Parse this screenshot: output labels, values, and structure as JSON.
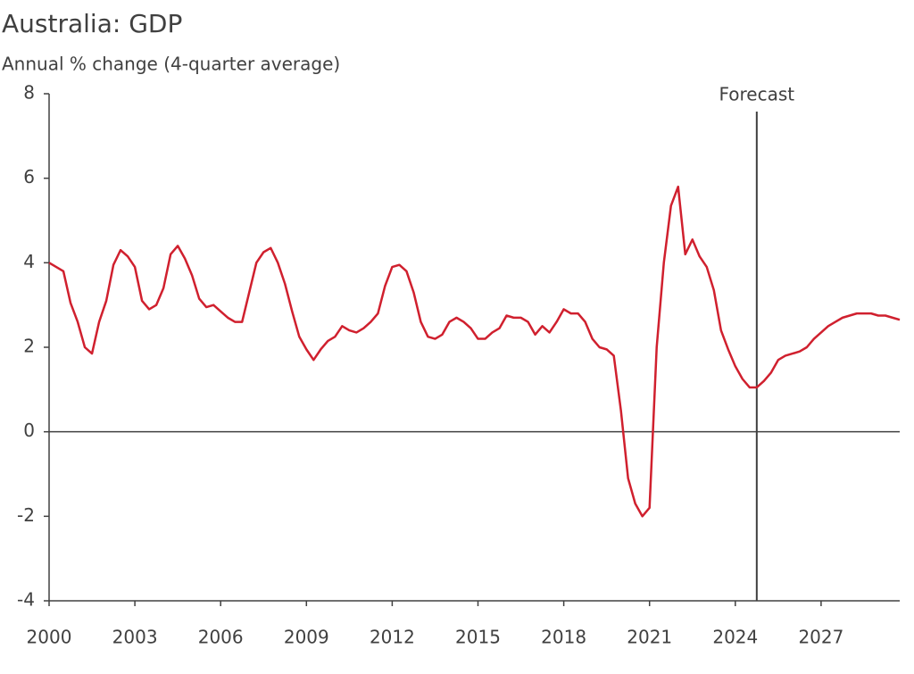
{
  "chart_data": {
    "type": "line",
    "title": "Australia: GDP",
    "subtitle": "Annual % change (4-quarter average)",
    "x": [
      2000,
      2000.25,
      2000.5,
      2000.75,
      2001,
      2001.25,
      2001.5,
      2001.75,
      2002,
      2002.25,
      2002.5,
      2002.75,
      2003,
      2003.25,
      2003.5,
      2003.75,
      2004,
      2004.25,
      2004.5,
      2004.75,
      2005,
      2005.25,
      2005.5,
      2005.75,
      2006,
      2006.25,
      2006.5,
      2006.75,
      2007,
      2007.25,
      2007.5,
      2007.75,
      2008,
      2008.25,
      2008.5,
      2008.75,
      2009,
      2009.25,
      2009.5,
      2009.75,
      2010,
      2010.25,
      2010.5,
      2010.75,
      2011,
      2011.25,
      2011.5,
      2011.75,
      2012,
      2012.25,
      2012.5,
      2012.75,
      2013,
      2013.25,
      2013.5,
      2013.75,
      2014,
      2014.25,
      2014.5,
      2014.75,
      2015,
      2015.25,
      2015.5,
      2015.75,
      2016,
      2016.25,
      2016.5,
      2016.75,
      2017,
      2017.25,
      2017.5,
      2017.75,
      2018,
      2018.25,
      2018.5,
      2018.75,
      2019,
      2019.25,
      2019.5,
      2019.75,
      2020,
      2020.25,
      2020.5,
      2020.75,
      2021,
      2021.25,
      2021.5,
      2021.75,
      2022,
      2022.25,
      2022.5,
      2022.75,
      2023,
      2023.25,
      2023.5,
      2023.75,
      2024,
      2024.25,
      2024.5,
      2024.75,
      2025,
      2025.25,
      2025.5,
      2025.75,
      2026,
      2026.25,
      2026.5,
      2026.75,
      2027,
      2027.25,
      2027.5,
      2027.75,
      2028,
      2028.25,
      2028.5,
      2028.75,
      2029,
      2029.25,
      2029.5,
      2029.75
    ],
    "values": [
      4.0,
      3.9,
      3.8,
      3.05,
      2.6,
      2.0,
      1.85,
      2.6,
      3.1,
      3.95,
      4.3,
      4.15,
      3.9,
      3.1,
      2.9,
      3.0,
      3.4,
      4.2,
      4.4,
      4.1,
      3.7,
      3.15,
      2.95,
      3.0,
      2.85,
      2.7,
      2.6,
      2.6,
      3.3,
      4.0,
      4.25,
      4.35,
      4.0,
      3.5,
      2.85,
      2.25,
      1.95,
      1.7,
      1.95,
      2.15,
      2.25,
      2.5,
      2.4,
      2.35,
      2.45,
      2.6,
      2.8,
      3.45,
      3.9,
      3.95,
      3.8,
      3.3,
      2.6,
      2.25,
      2.2,
      2.3,
      2.6,
      2.7,
      2.6,
      2.45,
      2.2,
      2.2,
      2.35,
      2.45,
      2.75,
      2.7,
      2.7,
      2.6,
      2.3,
      2.5,
      2.35,
      2.6,
      2.9,
      2.8,
      2.8,
      2.6,
      2.2,
      2.0,
      1.95,
      1.8,
      0.5,
      -1.1,
      -1.7,
      -2.0,
      -1.8,
      2.0,
      4.0,
      5.35,
      5.8,
      4.2,
      4.55,
      4.15,
      3.9,
      3.35,
      2.4,
      1.95,
      1.55,
      1.25,
      1.05,
      1.05,
      1.2,
      1.4,
      1.7,
      1.8,
      1.85,
      1.9,
      2.0,
      2.2,
      2.35,
      2.5,
      2.6,
      2.7,
      2.75,
      2.8,
      2.8,
      2.8,
      2.75,
      2.75,
      2.7,
      2.65
    ],
    "color": "#d0202e",
    "xlim": [
      2000,
      2029.75
    ],
    "xticks": [
      2000,
      2003,
      2006,
      2009,
      2012,
      2015,
      2018,
      2021,
      2024,
      2027
    ],
    "ylim": [
      -4,
      8
    ],
    "yticks": [
      -4,
      -2,
      0,
      2,
      4,
      6,
      8
    ],
    "grid": false,
    "annotations": [
      {
        "text": "Forecast",
        "x": 2024.75
      }
    ]
  }
}
